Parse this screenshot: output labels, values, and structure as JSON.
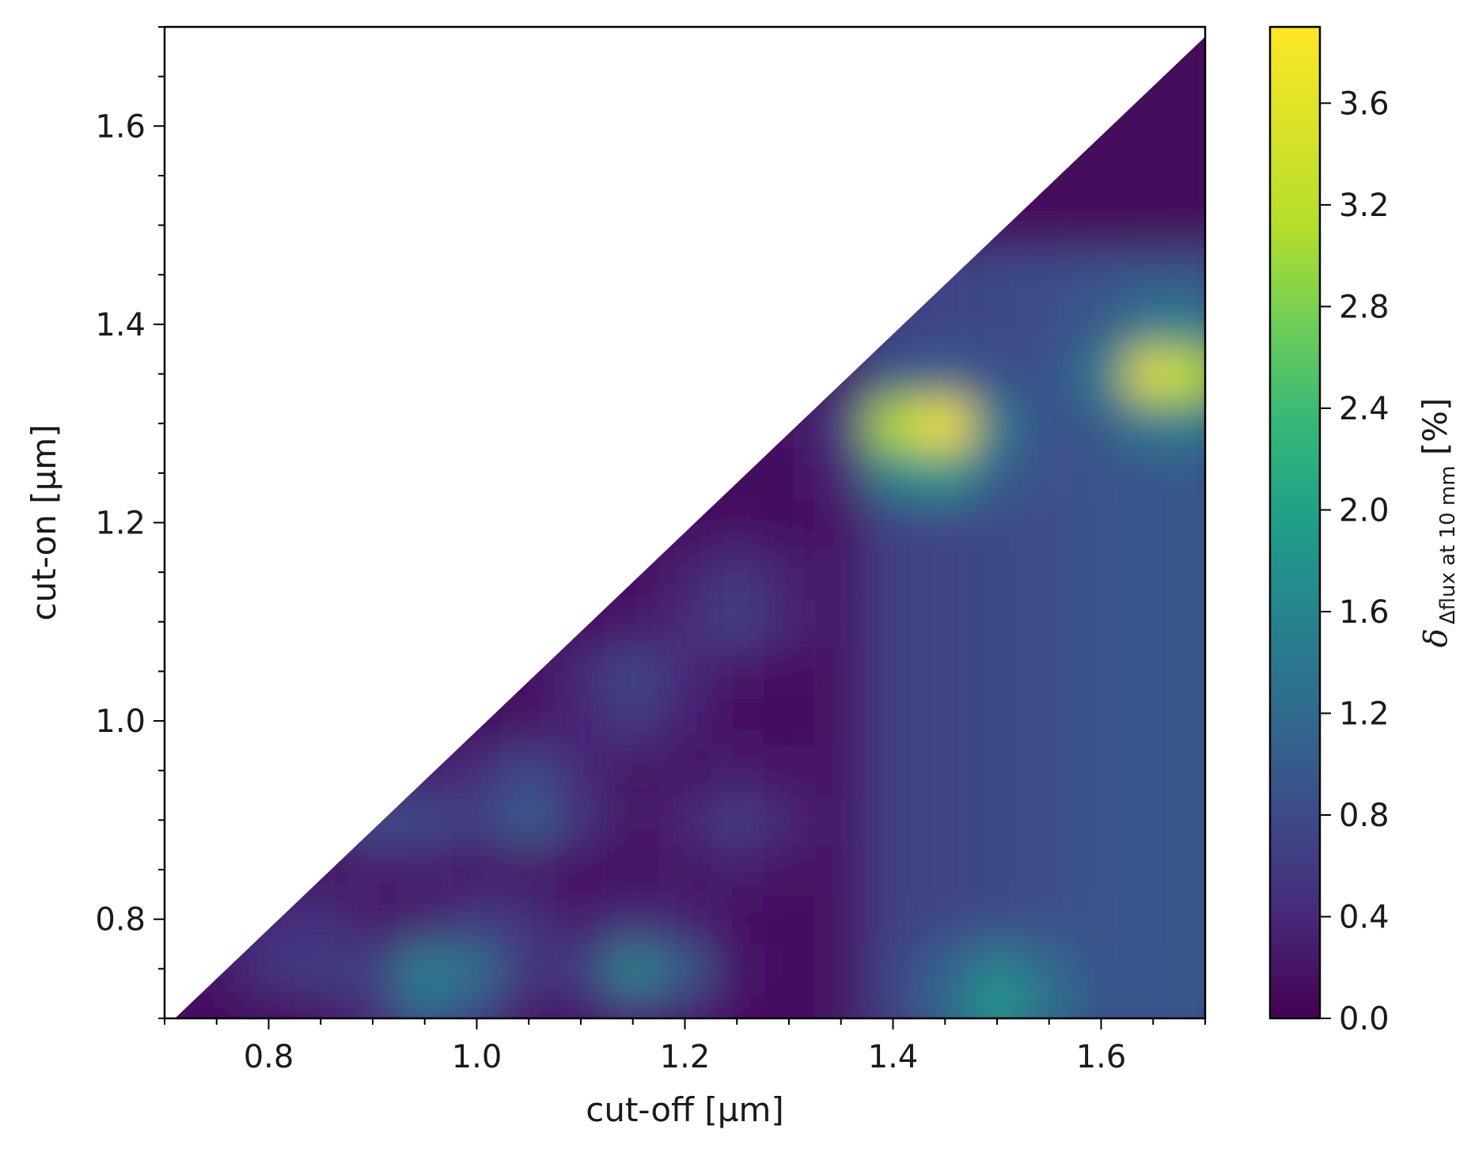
{
  "chart_data": {
    "type": "heatmap",
    "xlabel": "cut-off [µm]",
    "ylabel": "cut-on [µm]",
    "xlim": [
      0.7,
      1.7
    ],
    "ylim": [
      0.7,
      1.7
    ],
    "x_ticks": [
      0.8,
      1.0,
      1.2,
      1.4,
      1.6
    ],
    "x_tick_labels": [
      "0.8",
      "1.0",
      "1.2",
      "1.4",
      "1.6"
    ],
    "y_ticks": [
      0.8,
      1.0,
      1.2,
      1.4,
      1.6
    ],
    "y_tick_labels": [
      "0.8",
      "1.0",
      "1.2",
      "1.4",
      "1.6"
    ],
    "colorbar": {
      "label_symbol": "δ",
      "label_subscript": "Δflux at 10 mm",
      "label_unit": "[%]",
      "range": [
        0.0,
        3.9
      ],
      "ticks": [
        0.0,
        0.4,
        0.8,
        1.2,
        1.6,
        2.0,
        2.4,
        2.8,
        3.2,
        3.6
      ],
      "tick_labels": [
        "0.0",
        "0.4",
        "0.8",
        "1.2",
        "1.6",
        "2.0",
        "2.4",
        "2.8",
        "3.2",
        "3.6"
      ],
      "colormap": "viridis"
    },
    "domain": "values defined where cut-on < cut-off (lower-right triangle)",
    "grid_x": [
      0.7,
      0.75,
      0.8,
      0.85,
      0.9,
      0.95,
      1.0,
      1.05,
      1.1,
      1.15,
      1.2,
      1.25,
      1.3,
      1.35,
      1.4,
      1.45,
      1.5,
      1.55,
      1.6,
      1.65,
      1.7
    ],
    "grid_y": [
      0.7,
      0.75,
      0.8,
      0.85,
      0.9,
      0.95,
      1.0,
      1.05,
      1.1,
      1.15,
      1.2,
      1.25,
      1.3,
      1.35,
      1.4,
      1.45,
      1.5,
      1.55,
      1.6,
      1.65,
      1.7
    ],
    "features": [
      {
        "x": 1.43,
        "y": 1.29,
        "peak": 3.9
      },
      {
        "x": 1.67,
        "y": 1.35,
        "peak": 3.1
      },
      {
        "x": 0.96,
        "y": 0.73,
        "peak": 2.0
      },
      {
        "x": 1.16,
        "y": 0.75,
        "peak": 1.7
      },
      {
        "x": 1.5,
        "y": 0.72,
        "peak": 1.6
      },
      {
        "x": 1.05,
        "y": 0.92,
        "peak": 1.3
      },
      {
        "x": 1.25,
        "y": 0.9,
        "peak": 0.6
      },
      {
        "x": 1.15,
        "y": 1.03,
        "peak": 0.9
      },
      {
        "x": 1.25,
        "y": 1.12,
        "peak": 0.8
      },
      {
        "x": 0.83,
        "y": 0.77,
        "peak": 0.8
      },
      {
        "x": 0.92,
        "y": 0.9,
        "peak": 0.9
      },
      {
        "x": 1.02,
        "y": 0.78,
        "peak": 0.7
      }
    ]
  }
}
